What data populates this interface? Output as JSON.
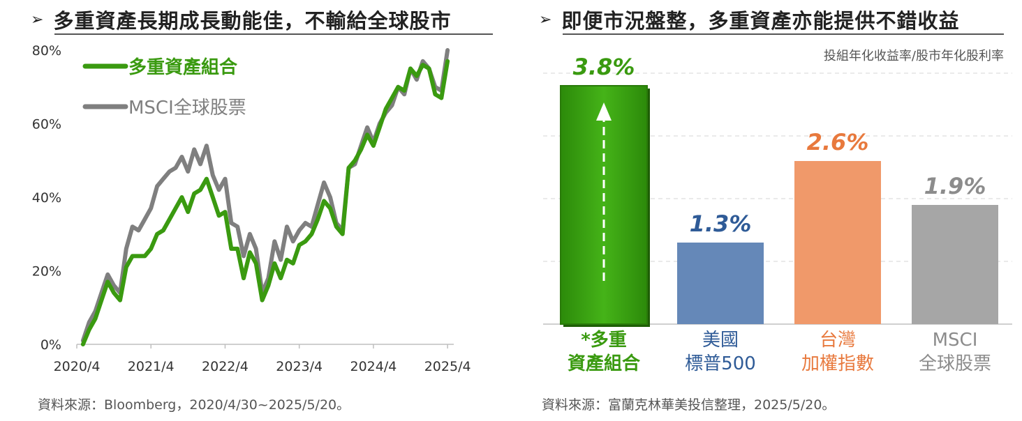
{
  "left_panel": {
    "title": "多重資產長期成長動能佳，不輸給全球股市",
    "source": "資料來源：Bloomberg，2020/4/30~2025/5/20。"
  },
  "right_panel": {
    "title": "即便市況盤整，多重資產亦能提供不錯收益",
    "subtitle": "投組年化收益率/股市年化股利率",
    "source": "資料來源：富蘭克林華美投信整理，2025/5/20。"
  },
  "chart_data": [
    {
      "type": "line",
      "yticks": [
        "0%",
        "20%",
        "40%",
        "60%",
        "80%"
      ],
      "ylim": [
        0,
        80
      ],
      "xticks": [
        "2020/4",
        "2021/4",
        "2022/4",
        "2023/4",
        "2024/4",
        "2025/4"
      ],
      "x_range": [
        "2020/4",
        "2025/5"
      ],
      "grid": false,
      "legend_position": "top-left",
      "series": [
        {
          "name": "多重資產組合",
          "color": "#3a9a10",
          "values": [
            0,
            4,
            7,
            12,
            17,
            14,
            12,
            21,
            24,
            24,
            24,
            26,
            30,
            31,
            34,
            37,
            40,
            36,
            41,
            42,
            45,
            40,
            35,
            36,
            26,
            26,
            18,
            25,
            22,
            12,
            16,
            22,
            18,
            23,
            22,
            27,
            28,
            30,
            34,
            39,
            37,
            32,
            30,
            48,
            50,
            53,
            57,
            54,
            59,
            64,
            67,
            70,
            69,
            75,
            73,
            76,
            75,
            68,
            67,
            77
          ],
          "x_start": "2020/5",
          "x_step_months": 1
        },
        {
          "name": "MSCI全球股票",
          "color": "#7f7f7f",
          "values": [
            1,
            6,
            9,
            14,
            19,
            16,
            14,
            26,
            32,
            31,
            34,
            37,
            43,
            45,
            47,
            48,
            51,
            47,
            53,
            49,
            54,
            46,
            42,
            45,
            33,
            32,
            24,
            30,
            26,
            14,
            18,
            28,
            23,
            32,
            28,
            31,
            33,
            32,
            38,
            44,
            40,
            33,
            31,
            48,
            49,
            54,
            59,
            55,
            60,
            63,
            65,
            70,
            68,
            75,
            72,
            77,
            75,
            70,
            69,
            80
          ],
          "x_start": "2020/5",
          "x_step_months": 1
        }
      ]
    },
    {
      "type": "bar",
      "categories": [
        "*多重\n資產組合",
        "美國\n標普500",
        "台灣\n加權指數",
        "MSCI\n全球股票"
      ],
      "values": [
        3.8,
        1.3,
        2.6,
        1.9
      ],
      "value_labels": [
        "3.8%",
        "1.3%",
        "2.6%",
        "1.9%"
      ],
      "colors": [
        "#3aa312",
        "#6588b8",
        "#f0996a",
        "#a6a6a6"
      ],
      "label_colors": [
        "#3a9a10",
        "#2f5b97",
        "#e8793d",
        "#8c8c8c"
      ],
      "ylim": [
        0,
        4.0
      ],
      "grid": true
    }
  ]
}
